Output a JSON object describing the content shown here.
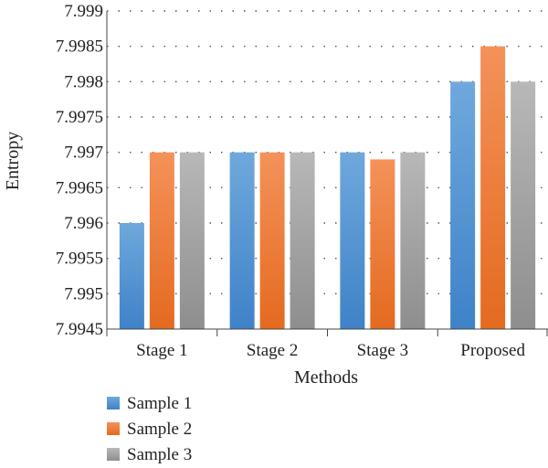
{
  "chart_data": {
    "type": "bar",
    "title": "",
    "xlabel": "Methods",
    "ylabel": "Entropy",
    "categories": [
      "Stage 1",
      "Stage 2",
      "Stage 3",
      "Proposed"
    ],
    "series": [
      {
        "name": "Sample 1",
        "color": "#5B9BD5",
        "values": [
          7.996,
          7.997,
          7.997,
          7.998
        ]
      },
      {
        "name": "Sample 2",
        "color": "#ED7D31",
        "values": [
          7.997,
          7.997,
          7.9969,
          7.9985
        ]
      },
      {
        "name": "Sample 3",
        "color": "#A5A5A5",
        "values": [
          7.997,
          7.997,
          7.997,
          7.998
        ]
      }
    ],
    "ylim": [
      7.9945,
      7.999
    ],
    "yticks": [
      "7.9945",
      "7.995",
      "7.9955",
      "7.996",
      "7.9965",
      "7.997",
      "7.9975",
      "7.998",
      "7.9985",
      "7.999"
    ],
    "grid": true,
    "legend_position": "bottom-left"
  }
}
